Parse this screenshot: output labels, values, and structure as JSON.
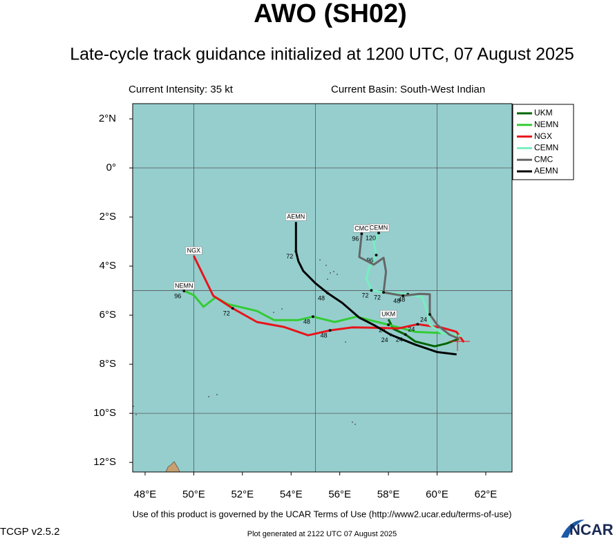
{
  "chart_data": {
    "type": "track",
    "title": "AWO (SH02)",
    "subtitle": "Late-cycle track guidance initialized at 1200 UTC, 07 August 2025",
    "xlim": [
      47.49,
      63.08
    ],
    "ylim": [
      -12.39,
      2.62
    ],
    "xticks": [
      {
        "value": 48,
        "label": "48°E"
      },
      {
        "value": 50,
        "label": "50°E"
      },
      {
        "value": 52,
        "label": "52°E"
      },
      {
        "value": 54,
        "label": "54°E"
      },
      {
        "value": 56,
        "label": "56°E"
      },
      {
        "value": 58,
        "label": "58°E"
      },
      {
        "value": 60,
        "label": "60°E"
      },
      {
        "value": 62,
        "label": "62°E"
      }
    ],
    "yticks": [
      {
        "value": 2,
        "label": "2°N"
      },
      {
        "value": 0,
        "label": "0°"
      },
      {
        "value": -2,
        "label": "2°S"
      },
      {
        "value": -4,
        "label": "4°S"
      },
      {
        "value": -6,
        "label": "6°S"
      },
      {
        "value": -8,
        "label": "8°S"
      },
      {
        "value": -10,
        "label": "10°S"
      },
      {
        "value": -12,
        "label": "12°S"
      }
    ],
    "grid_lons": [
      50,
      55,
      60
    ],
    "grid_lats": [
      0,
      -5,
      -10
    ],
    "background": "#96cece",
    "legend": "right",
    "series": [
      {
        "name": "UKM",
        "color": "#006400",
        "lon": [
          60.9,
          60.4,
          59.9,
          59.1,
          58.7,
          58.2,
          58.0
        ],
        "lat": [
          -6.96,
          -7.15,
          -7.27,
          -7.07,
          -6.79,
          -6.56,
          -6.17
        ],
        "hour_labels": [
          null,
          null,
          null,
          null,
          24,
          null,
          null
        ]
      },
      {
        "name": "NEMN",
        "color": "#33cc33",
        "lon": [
          60.8,
          60.2,
          59.1,
          58.0,
          57.1,
          56.7,
          55.8,
          54.9,
          54.3,
          53.3,
          52.6,
          51.4,
          50.9,
          50.4,
          50.0,
          49.6
        ],
        "lat": [
          -6.82,
          -6.73,
          -6.68,
          -6.39,
          -6.17,
          -6.06,
          -6.28,
          -6.06,
          -6.2,
          -6.2,
          -5.83,
          -5.55,
          -5.27,
          -5.66,
          -5.18,
          -5.01
        ],
        "hour_labels": [
          null,
          null,
          null,
          24,
          null,
          null,
          null,
          48,
          null,
          null,
          null,
          null,
          null,
          null,
          null,
          96
        ]
      },
      {
        "name": "NGX",
        "color": "#e8141a",
        "lon": [
          61.1,
          60.8,
          60.2,
          59.2,
          58.4,
          57.4,
          56.5,
          55.6,
          54.7,
          53.7,
          52.6,
          51.6,
          50.8,
          50.0
        ],
        "lat": [
          -7.1,
          -6.68,
          -6.51,
          -6.37,
          -6.54,
          -6.51,
          -6.5,
          -6.62,
          -6.82,
          -6.48,
          -6.28,
          -5.72,
          -5.21,
          -3.58
        ],
        "hour_labels": [
          null,
          null,
          null,
          24,
          null,
          null,
          null,
          48,
          null,
          null,
          null,
          72,
          null,
          null
        ]
      },
      {
        "name": "CEMN",
        "color": "#77eec0",
        "lon": [
          61.0,
          60.2,
          59.7,
          59.6,
          59.4,
          58.8,
          58.0,
          57.3,
          57.1,
          57.2,
          57.5,
          57.4,
          57.6
        ],
        "lat": [
          -6.85,
          -6.73,
          -6.39,
          -5.89,
          -5.27,
          -5.15,
          -5.1,
          -4.99,
          -4.51,
          -4.08,
          -3.55,
          -3.07,
          -2.65
        ],
        "hour_labels": [
          null,
          null,
          null,
          null,
          null,
          48,
          null,
          72,
          null,
          null,
          96,
          null,
          120
        ]
      },
      {
        "name": "CMC",
        "color": "#666666",
        "lon": [
          60.9,
          60.5,
          60.0,
          59.7,
          59.7,
          59.3,
          58.6,
          57.8,
          57.9,
          57.8,
          57.4,
          56.8,
          56.9
        ],
        "lat": [
          -6.96,
          -6.79,
          -6.39,
          -5.97,
          -5.15,
          -5.13,
          -5.21,
          -5.07,
          -4.23,
          -3.66,
          -3.94,
          -3.63,
          -2.68
        ],
        "hour_labels": [
          null,
          null,
          null,
          24,
          null,
          null,
          48,
          72,
          null,
          null,
          null,
          null,
          96
        ]
      },
      {
        "name": "AEMN",
        "color": "#000000",
        "lon": [
          60.8,
          60.0,
          59.1,
          58.1,
          57.4,
          56.8,
          56.1,
          55.5,
          55.0,
          54.5,
          54.3,
          54.2,
          54.2
        ],
        "lat": [
          -7.6,
          -7.5,
          -7.2,
          -6.8,
          -6.4,
          -6.1,
          -5.5,
          -5.1,
          -4.7,
          -4.2,
          -3.8,
          -3.4,
          -2.2
        ],
        "hour_labels": [
          null,
          null,
          null,
          24,
          null,
          null,
          null,
          48,
          null,
          null,
          null,
          72,
          null
        ]
      }
    ]
  },
  "header": {
    "current_intensity": "Current Intensity: 35 kt",
    "current_basin": "Current Basin: South-West Indian"
  },
  "footer": {
    "terms": "Use of this product is governed by the UCAR Terms of Use (http://www2.ucar.edu/terms-of-use)",
    "version": "TCGP v2.5.2",
    "generated": "Plot generated at 2122 UTC   07 August 2025",
    "logo": "NCAR"
  }
}
